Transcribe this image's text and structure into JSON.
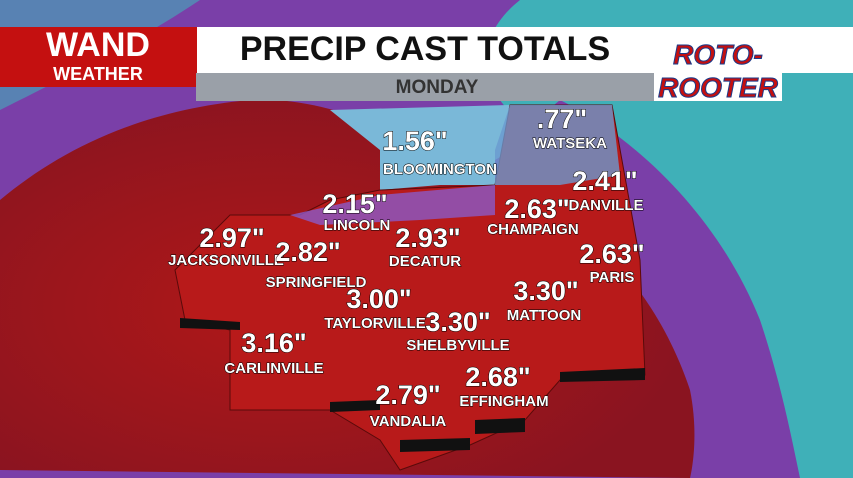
{
  "header": {
    "logo_top": "WAND",
    "logo_bottom": "WEATHER",
    "title": "PRECIP CAST TOTALS",
    "sponsor_top": "ROTO-",
    "sponsor_bottom": "ROOTER",
    "day": "MONDAY"
  },
  "cities": [
    {
      "name": "BLOOMINGTON",
      "amount": "1.56\""
    },
    {
      "name": "WATSEKA",
      "amount": ".77\""
    },
    {
      "name": "LINCOLN",
      "amount": "2.15\""
    },
    {
      "name": "DANVILLE",
      "amount": "2.41\""
    },
    {
      "name": "CHAMPAIGN",
      "amount": "2.63\""
    },
    {
      "name": "JACKSONVILLE",
      "amount": "2.97\""
    },
    {
      "name": "SPRINGFIELD",
      "amount": "2.82\""
    },
    {
      "name": "DECATUR",
      "amount": "2.93\""
    },
    {
      "name": "PARIS",
      "amount": "2.63\""
    },
    {
      "name": "TAYLORVILLE",
      "amount": "3.00\""
    },
    {
      "name": "SHELBYVILLE",
      "amount": "3.30\""
    },
    {
      "name": "MATTOON",
      "amount": "3.30\""
    },
    {
      "name": "CARLINVILLE",
      "amount": "3.16\""
    },
    {
      "name": "EFFINGHAM",
      "amount": "2.68\""
    },
    {
      "name": "VANDALIA",
      "amount": "2.79\""
    }
  ]
}
